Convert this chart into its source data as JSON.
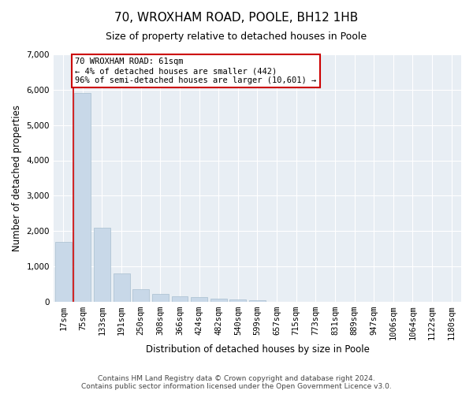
{
  "title": "70, WROXHAM ROAD, POOLE, BH12 1HB",
  "subtitle": "Size of property relative to detached houses in Poole",
  "xlabel": "Distribution of detached houses by size in Poole",
  "ylabel": "Number of detached properties",
  "categories": [
    "17sqm",
    "75sqm",
    "133sqm",
    "191sqm",
    "250sqm",
    "308sqm",
    "366sqm",
    "424sqm",
    "482sqm",
    "540sqm",
    "599sqm",
    "657sqm",
    "715sqm",
    "773sqm",
    "831sqm",
    "889sqm",
    "947sqm",
    "1006sqm",
    "1064sqm",
    "1122sqm",
    "1180sqm"
  ],
  "values": [
    1700,
    5900,
    2100,
    800,
    350,
    230,
    150,
    120,
    80,
    60,
    50,
    0,
    0,
    0,
    0,
    0,
    0,
    0,
    0,
    0,
    0
  ],
  "bar_color": "#c8d8e8",
  "bar_edge_color": "#a8bfd0",
  "vline_color": "#cc0000",
  "annotation_text": "70 WROXHAM ROAD: 61sqm\n← 4% of detached houses are smaller (442)\n96% of semi-detached houses are larger (10,601) →",
  "annotation_box_facecolor": "white",
  "annotation_box_edgecolor": "#cc0000",
  "ylim": [
    0,
    7000
  ],
  "yticks": [
    0,
    1000,
    2000,
    3000,
    4000,
    5000,
    6000,
    7000
  ],
  "footer1": "Contains HM Land Registry data © Crown copyright and database right 2024.",
  "footer2": "Contains public sector information licensed under the Open Government Licence v3.0.",
  "fig_bg_color": "#ffffff",
  "plot_bg_color": "#e8eef4",
  "grid_color": "#ffffff",
  "title_fontsize": 11,
  "subtitle_fontsize": 9,
  "axis_label_fontsize": 8.5,
  "tick_fontsize": 7.5,
  "annotation_fontsize": 7.5,
  "footer_fontsize": 6.5
}
